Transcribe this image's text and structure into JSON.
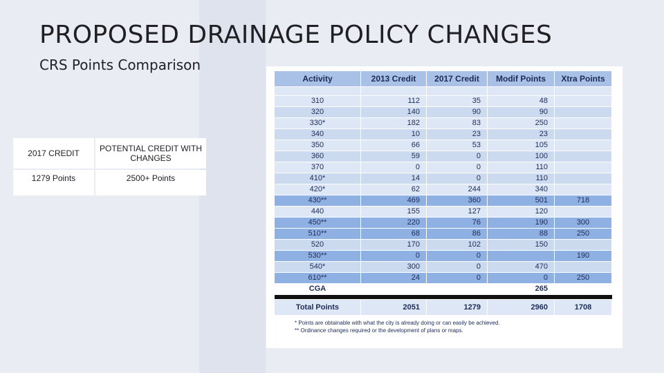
{
  "title": "PROPOSED DRAINAGE POLICY CHANGES",
  "subtitle": "CRS Points Comparison",
  "comparison": {
    "header": [
      "2017 CREDIT",
      "POTENTIAL CREDIT WITH CHANGES"
    ],
    "values": [
      "1279 Points",
      "2500+ Points"
    ]
  },
  "table": {
    "headers": [
      "Activity",
      "2013 Credit",
      "2017 Credit",
      "Modif Points",
      "Xtra Points"
    ],
    "rows": [
      {
        "activity": "310",
        "c2013": "112",
        "c2017": "35",
        "modif": "48",
        "xtra": "",
        "hl": false
      },
      {
        "activity": "320",
        "c2013": "140",
        "c2017": "90",
        "modif": "90",
        "xtra": "",
        "hl": false
      },
      {
        "activity": "330*",
        "c2013": "182",
        "c2017": "83",
        "modif": "250",
        "xtra": "",
        "hl": false
      },
      {
        "activity": "340",
        "c2013": "10",
        "c2017": "23",
        "modif": "23",
        "xtra": "",
        "hl": false
      },
      {
        "activity": "350",
        "c2013": "66",
        "c2017": "53",
        "modif": "105",
        "xtra": "",
        "hl": false
      },
      {
        "activity": "360",
        "c2013": "59",
        "c2017": "0",
        "modif": "100",
        "xtra": "",
        "hl": false
      },
      {
        "activity": "370",
        "c2013": "0",
        "c2017": "0",
        "modif": "110",
        "xtra": "",
        "hl": false
      },
      {
        "activity": "410*",
        "c2013": "14",
        "c2017": "0",
        "modif": "110",
        "xtra": "",
        "hl": false
      },
      {
        "activity": "420*",
        "c2013": "62",
        "c2017": "244",
        "modif": "340",
        "xtra": "",
        "hl": false
      },
      {
        "activity": "430**",
        "c2013": "469",
        "c2017": "360",
        "modif": "501",
        "xtra": "718",
        "hl": true
      },
      {
        "activity": "440",
        "c2013": "155",
        "c2017": "127",
        "modif": "120",
        "xtra": "",
        "hl": false
      },
      {
        "activity": "450**",
        "c2013": "220",
        "c2017": "76",
        "modif": "190",
        "xtra": "300",
        "hl": true
      },
      {
        "activity": "510**",
        "c2013": "68",
        "c2017": "86",
        "modif": "88",
        "xtra": "250",
        "hl": true
      },
      {
        "activity": "520",
        "c2013": "170",
        "c2017": "102",
        "modif": "150",
        "xtra": "",
        "hl": false
      },
      {
        "activity": "530**",
        "c2013": "0",
        "c2017": "0",
        "modif": "",
        "xtra": "190",
        "hl": true
      },
      {
        "activity": "540*",
        "c2013": "300",
        "c2017": "0",
        "modif": "470",
        "xtra": "",
        "hl": false
      },
      {
        "activity": "610**",
        "c2013": "24",
        "c2017": "0",
        "modif": "0",
        "xtra": "250",
        "hl": true
      }
    ],
    "cga": {
      "activity": "CGA",
      "modif": "265"
    },
    "total": {
      "label": "Total Points",
      "c2013": "2051",
      "c2017": "1279",
      "modif": "2960",
      "xtra": "1708"
    },
    "notes": [
      "* Points are obtainable with what the city is already doing or can easily be achieved.",
      "** Ordinance changes required or the development of plans or maps."
    ]
  }
}
